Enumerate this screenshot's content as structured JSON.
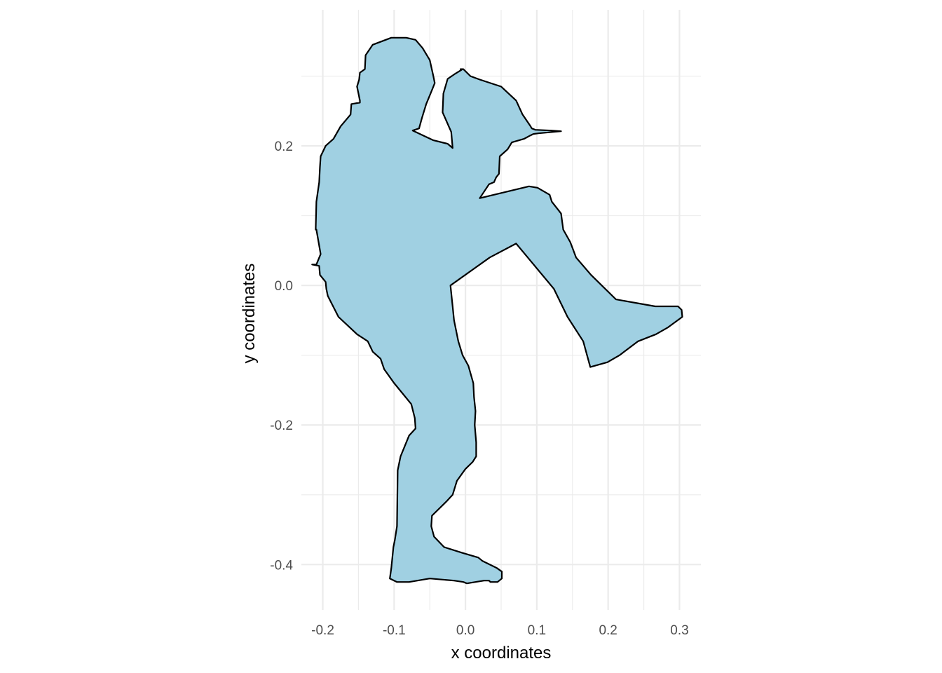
{
  "chart_data": {
    "type": "polygon",
    "xlabel": "x coordinates",
    "ylabel": "y coordinates",
    "xlim": [
      -0.23,
      0.33
    ],
    "ylim": [
      -0.465,
      0.395
    ],
    "x_ticks": [
      -0.2,
      -0.1,
      0.0,
      0.1,
      0.2,
      0.3
    ],
    "x_tick_labels": [
      "-0.2",
      "-0.1",
      "0.0",
      "0.1",
      "0.2",
      "0.3"
    ],
    "y_ticks": [
      0.2,
      0.0,
      -0.2,
      -0.4
    ],
    "y_tick_labels": [
      "0.2",
      "0.0",
      "-0.2",
      "-0.4"
    ],
    "grid": true,
    "fill_color": "#a0d0e2",
    "stroke_color": "#000000",
    "grid_color": "#ebebeb",
    "shape": {
      "x": [
        -0.104,
        -0.083,
        -0.07,
        -0.06,
        -0.05,
        -0.045,
        -0.043,
        -0.047,
        -0.055,
        -0.061,
        -0.065,
        -0.074,
        -0.045,
        -0.025,
        -0.018,
        -0.02,
        -0.032,
        -0.031,
        -0.025,
        -0.015,
        -0.007,
        -0.004,
        -0.007,
        -0.003,
        0.007,
        0.02,
        0.05,
        0.071,
        0.08,
        0.09,
        0.093,
        0.098,
        0.12,
        0.134,
        0.102,
        0.095,
        0.091,
        0.082,
        0.065,
        0.059,
        0.048,
        0.047,
        0.043,
        0.04,
        0.033,
        0.02,
        0.089,
        0.101,
        0.118,
        0.121,
        0.134,
        0.137,
        0.147,
        0.155,
        0.176,
        0.211,
        0.266,
        0.298,
        0.303,
        0.304,
        0.284,
        0.267,
        0.242,
        0.216,
        0.199,
        0.175,
        0.165,
        0.143,
        0.124,
        0.071,
        0.034,
        -0.021,
        -0.018,
        -0.016,
        -0.01,
        -0.004,
        0.004,
        0.011,
        0.012,
        0.014,
        0.013,
        0.015,
        0.015,
        0.01,
        0.0,
        -0.012,
        -0.018,
        -0.027,
        -0.047,
        -0.048,
        -0.044,
        -0.03,
        -0.005,
        0.018,
        0.024,
        0.044,
        0.051,
        0.051,
        0.045,
        0.035,
        0.033,
        0.026,
        0.002,
        -0.003,
        -0.003,
        -0.016,
        -0.05,
        -0.079,
        -0.096,
        -0.106,
        -0.104,
        -0.101,
        -0.099,
        -0.096,
        -0.095,
        -0.091,
        -0.079,
        -0.07,
        -0.071,
        -0.076,
        -0.1,
        -0.114,
        -0.119,
        -0.13,
        -0.137,
        -0.152,
        -0.178,
        -0.193,
        -0.195,
        -0.196,
        -0.204,
        -0.205,
        -0.215,
        -0.209,
        -0.203,
        -0.209,
        -0.21,
        -0.209,
        -0.205,
        -0.204,
        -0.203,
        -0.196,
        -0.185,
        -0.175,
        -0.161,
        -0.16,
        -0.148,
        -0.148,
        -0.152,
        -0.149,
        -0.148,
        -0.141,
        -0.14,
        -0.13
      ],
      "y": [
        0.355,
        0.355,
        0.352,
        0.34,
        0.323,
        0.3,
        0.29,
        0.28,
        0.26,
        0.24,
        0.225,
        0.222,
        0.208,
        0.203,
        0.197,
        0.22,
        0.248,
        0.275,
        0.296,
        0.303,
        0.308,
        0.31,
        0.31,
        0.31,
        0.3,
        0.295,
        0.285,
        0.265,
        0.245,
        0.23,
        0.225,
        0.223,
        0.222,
        0.221,
        0.218,
        0.217,
        0.215,
        0.21,
        0.205,
        0.195,
        0.185,
        0.16,
        0.155,
        0.148,
        0.145,
        0.125,
        0.142,
        0.14,
        0.13,
        0.12,
        0.103,
        0.08,
        0.062,
        0.04,
        0.015,
        -0.02,
        -0.03,
        -0.03,
        -0.035,
        -0.045,
        -0.06,
        -0.07,
        -0.08,
        -0.1,
        -0.11,
        -0.117,
        -0.08,
        -0.045,
        -0.005,
        0.06,
        0.04,
        0.0,
        -0.03,
        -0.05,
        -0.08,
        -0.1,
        -0.115,
        -0.14,
        -0.16,
        -0.18,
        -0.2,
        -0.225,
        -0.245,
        -0.253,
        -0.263,
        -0.28,
        -0.3,
        -0.31,
        -0.33,
        -0.345,
        -0.36,
        -0.375,
        -0.383,
        -0.39,
        -0.395,
        -0.405,
        -0.41,
        -0.42,
        -0.425,
        -0.425,
        -0.423,
        -0.423,
        -0.427,
        -0.425,
        -0.425,
        -0.423,
        -0.42,
        -0.425,
        -0.425,
        -0.42,
        -0.405,
        -0.375,
        -0.365,
        -0.345,
        -0.265,
        -0.245,
        -0.215,
        -0.205,
        -0.19,
        -0.17,
        -0.14,
        -0.12,
        -0.105,
        -0.095,
        -0.08,
        -0.07,
        -0.045,
        -0.015,
        -0.005,
        0.005,
        0.015,
        0.028,
        0.03,
        0.03,
        0.045,
        0.08,
        0.08,
        0.12,
        0.148,
        0.17,
        0.185,
        0.2,
        0.21,
        0.228,
        0.245,
        0.26,
        0.262,
        0.265,
        0.285,
        0.295,
        0.305,
        0.31,
        0.33,
        0.345
      ]
    }
  }
}
